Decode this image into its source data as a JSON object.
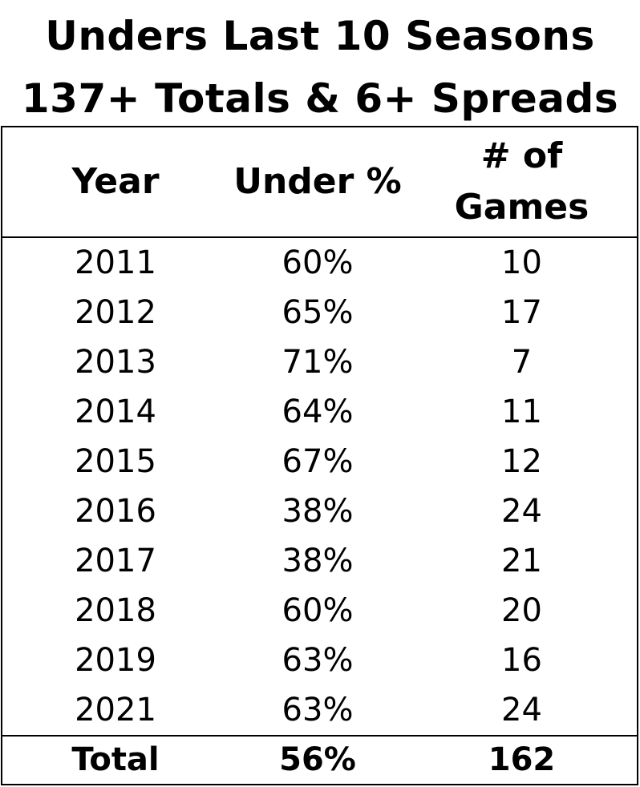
{
  "title": {
    "line1": "Unders Last 10 Seasons",
    "line2": "137+ Totals & 6+ Spreads"
  },
  "columns": {
    "year": "Year",
    "under_pct": "Under %",
    "games_line1": "# of",
    "games_line2": "Games"
  },
  "rows": [
    {
      "year": "2011",
      "under_pct": "60%",
      "games": "10"
    },
    {
      "year": "2012",
      "under_pct": "65%",
      "games": "17"
    },
    {
      "year": "2013",
      "under_pct": "71%",
      "games": "7"
    },
    {
      "year": "2014",
      "under_pct": "64%",
      "games": "11"
    },
    {
      "year": "2015",
      "under_pct": "67%",
      "games": "12"
    },
    {
      "year": "2016",
      "under_pct": "38%",
      "games": "24"
    },
    {
      "year": "2017",
      "under_pct": "38%",
      "games": "21"
    },
    {
      "year": "2018",
      "under_pct": "60%",
      "games": "20"
    },
    {
      "year": "2019",
      "under_pct": "63%",
      "games": "16"
    },
    {
      "year": "2021",
      "under_pct": "63%",
      "games": "24"
    }
  ],
  "total": {
    "label": "Total",
    "under_pct": "56%",
    "games": "162"
  },
  "chart_data": {
    "type": "table",
    "title": "Unders Last 10 Seasons 137+ Totals & 6+ Spreads",
    "columns": [
      "Year",
      "Under %",
      "# of Games"
    ],
    "rows": [
      [
        "2011",
        "60%",
        "10"
      ],
      [
        "2012",
        "65%",
        "17"
      ],
      [
        "2013",
        "71%",
        "7"
      ],
      [
        "2014",
        "64%",
        "11"
      ],
      [
        "2015",
        "67%",
        "12"
      ],
      [
        "2016",
        "38%",
        "24"
      ],
      [
        "2017",
        "38%",
        "21"
      ],
      [
        "2018",
        "60%",
        "20"
      ],
      [
        "2019",
        "63%",
        "16"
      ],
      [
        "2021",
        "63%",
        "24"
      ]
    ],
    "total": [
      "Total",
      "56%",
      "162"
    ]
  }
}
